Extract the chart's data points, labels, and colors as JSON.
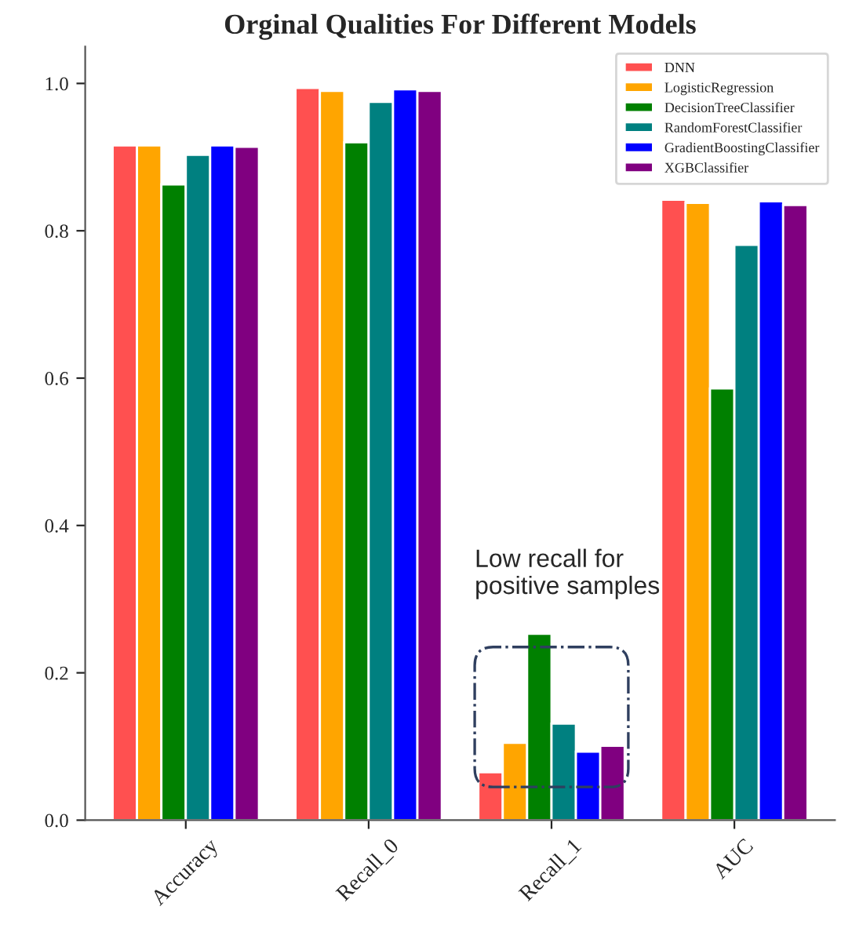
{
  "chart_data": {
    "type": "bar",
    "title": "Orginal Qualities For Different Models",
    "categories": [
      "Accuracy",
      "Recall_0",
      "Recall_1",
      "AUC"
    ],
    "series": [
      {
        "name": "DNN",
        "color": "#ff5050",
        "values": [
          0.916,
          0.994,
          0.065,
          0.842
        ]
      },
      {
        "name": "LogisticRegression",
        "color": "#ffa500",
        "values": [
          0.916,
          0.99,
          0.105,
          0.838
        ]
      },
      {
        "name": "DecisionTreeClassifier",
        "color": "#008000",
        "values": [
          0.863,
          0.92,
          0.253,
          0.586
        ]
      },
      {
        "name": "RandomForestClassifier",
        "color": "#008080",
        "values": [
          0.903,
          0.975,
          0.131,
          0.781
        ]
      },
      {
        "name": "GradientBoostingClassifier",
        "color": "#0000ff",
        "values": [
          0.916,
          0.992,
          0.093,
          0.84
        ]
      },
      {
        "name": "XGBClassifier",
        "color": "#800080",
        "values": [
          0.914,
          0.99,
          0.101,
          0.835
        ]
      }
    ],
    "ylim": [
      0,
      1.05
    ],
    "yticks": [
      {
        "value": 0,
        "label": "0.0"
      },
      0.2,
      0.4,
      0.6,
      0.8,
      {
        "value": 1,
        "label": "1.0"
      }
    ],
    "annotations": [
      "Low recall for\npositive samples"
    ],
    "legend": "top right",
    "grid": false
  }
}
